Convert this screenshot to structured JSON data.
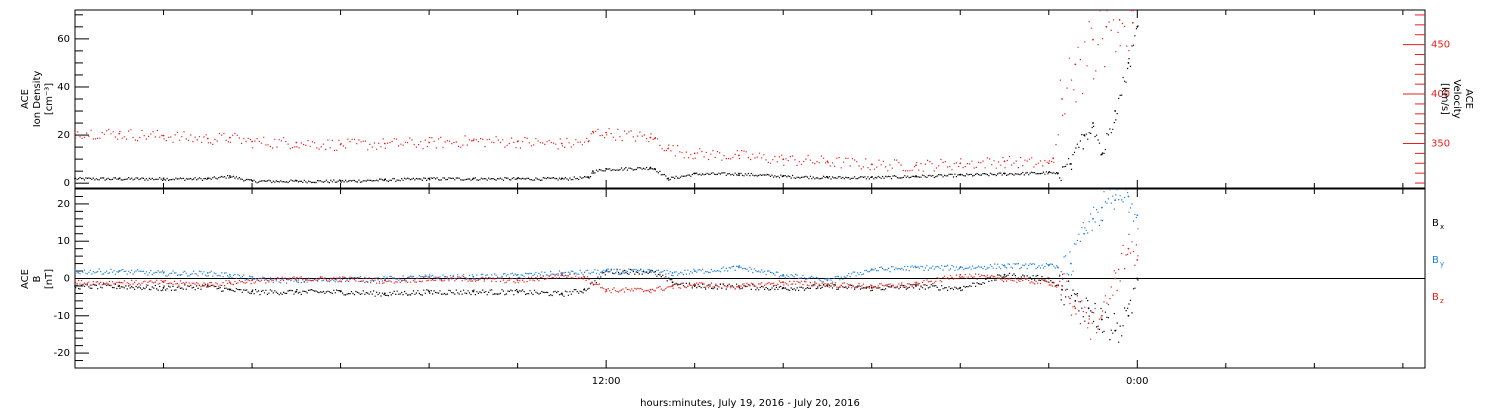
{
  "chart_data": [
    {
      "type": "scatter",
      "panel": "top",
      "ylabel_left": [
        "ACE",
        "Ion Density",
        "[cm⁻³]"
      ],
      "ylabel_right": [
        "ACE",
        "Velocity",
        "[km/s]"
      ],
      "ylim_left": [
        -2,
        72
      ],
      "yticks_left": [
        0,
        20,
        40,
        60
      ],
      "ylim_right": [
        305,
        485
      ],
      "yticks_right": [
        350,
        400,
        450
      ],
      "series": [
        {
          "name": "Ion Density",
          "axis": "left",
          "color": "#000000",
          "x": [
            0,
            1,
            2,
            3,
            3.5,
            4,
            5,
            6,
            7,
            8,
            9,
            10,
            11,
            11.6,
            11.7,
            12,
            13,
            13.1,
            13.4,
            14,
            15,
            16,
            17,
            18,
            19,
            20,
            21,
            22,
            22.2,
            22.5,
            22.8,
            23,
            23.2,
            23.5,
            23.8,
            24.0
          ],
          "y": [
            2,
            2,
            2,
            2,
            3,
            1,
            1,
            1,
            1.5,
            2,
            2,
            2,
            2,
            2.5,
            5,
            6,
            6.5,
            6,
            2,
            4,
            4,
            3,
            2.5,
            2.5,
            3,
            3.5,
            4,
            4.5,
            4,
            8,
            20,
            25,
            12,
            30,
            50,
            65
          ]
        },
        {
          "name": "Velocity",
          "axis": "right",
          "color": "#e8201a",
          "x": [
            0,
            1,
            2,
            3,
            3.5,
            4,
            5,
            6,
            7,
            8,
            9,
            10,
            11,
            11.6,
            11.7,
            12,
            13,
            13.1,
            13.4,
            14,
            15,
            16,
            17,
            18,
            19,
            20,
            21,
            22,
            22.1,
            22.3,
            22.6,
            23,
            23.3,
            23.6,
            23.9
          ],
          "y": [
            362,
            360,
            358,
            355,
            356,
            352,
            351,
            349,
            350,
            351,
            353,
            352,
            350,
            352,
            362,
            361,
            356,
            355,
            345,
            340,
            338,
            334,
            332,
            329,
            328,
            330,
            332,
            330,
            335,
            395,
            430,
            455,
            468,
            475,
            472
          ]
        }
      ]
    },
    {
      "type": "scatter",
      "panel": "bottom",
      "ylabel_left": [
        "ACE",
        "B",
        "[nT]"
      ],
      "ylim": [
        -24,
        24
      ],
      "yticks": [
        -20,
        -10,
        0,
        10,
        20
      ],
      "zero_line": true,
      "legend": [
        "Bx",
        "By",
        "Bz"
      ],
      "series": [
        {
          "name": "Bx",
          "color": "#000000",
          "x": [
            0,
            1,
            2,
            3,
            3.5,
            4,
            5,
            6,
            7,
            8,
            9,
            10,
            11,
            11.5,
            12,
            13,
            13.5,
            14,
            15,
            16,
            17,
            18,
            19,
            20,
            21,
            22,
            22.3,
            22.6,
            22.9,
            23.2,
            23.5,
            23.8,
            24.0
          ],
          "y": [
            -2,
            -2,
            -2.5,
            -2,
            -3,
            -3.5,
            -3.5,
            -3.5,
            -4,
            -3.5,
            -3.5,
            -3.5,
            -4,
            -3,
            2,
            2,
            -1,
            -2,
            -2,
            -2.5,
            -2,
            -2.5,
            -2,
            -2.5,
            1,
            0,
            -3,
            -6,
            -8,
            -11,
            -14,
            -10,
            0
          ]
        },
        {
          "name": "By",
          "color": "#1f7fdb",
          "x": [
            0,
            1,
            2,
            3,
            3.5,
            4,
            5,
            6,
            7,
            8,
            9,
            10,
            11,
            12,
            13,
            13.5,
            14,
            15,
            16,
            17,
            18,
            19,
            20,
            21,
            22,
            22.2,
            22.5,
            22.8,
            23,
            23.2,
            23.5,
            23.8,
            24.0
          ],
          "y": [
            2,
            2,
            1.5,
            1.5,
            1,
            0,
            -0.5,
            0,
            0,
            0.5,
            0.5,
            1,
            1.5,
            2,
            2,
            1.5,
            2,
            3,
            1,
            -0.5,
            2.5,
            3,
            3,
            3.5,
            3.5,
            3,
            4,
            12,
            16,
            19,
            21,
            22,
            17
          ]
        },
        {
          "name": "Bz",
          "color": "#e8201a",
          "x": [
            0,
            1,
            2,
            3,
            3.5,
            4,
            5,
            6,
            7,
            8,
            9,
            10,
            11,
            11.5,
            12,
            13,
            13.5,
            14,
            15,
            16,
            17,
            18,
            19,
            20,
            21,
            22,
            22.3,
            22.6,
            22.9,
            23.2,
            23.5,
            23.8,
            24.0
          ],
          "y": [
            -1,
            -1,
            -1,
            -1.5,
            -1,
            -0.5,
            0,
            0,
            -0.5,
            0,
            0,
            -0.5,
            1,
            0.5,
            -3,
            -3,
            -2,
            -1.5,
            -2,
            -1,
            -1.5,
            -2,
            -1.5,
            1,
            0,
            -1,
            -2,
            -8,
            -12,
            -10,
            0,
            8,
            5
          ]
        }
      ]
    }
  ],
  "x_axis": {
    "label": "hours:minutes, July 19, 2016 - July 20, 2016",
    "tick_labels": [
      {
        "hour": 12,
        "label": "12:00"
      },
      {
        "hour": 24,
        "label": "0:00"
      }
    ],
    "range_hours": [
      0,
      30.5
    ]
  },
  "legend_labels": {
    "bx_main": "B",
    "bx_sub": "x",
    "by_main": "B",
    "by_sub": "y",
    "bz_main": "B",
    "bz_sub": "z"
  },
  "colors": {
    "black": "#000000",
    "red": "#e8201a",
    "blue": "#1f7fdb"
  }
}
